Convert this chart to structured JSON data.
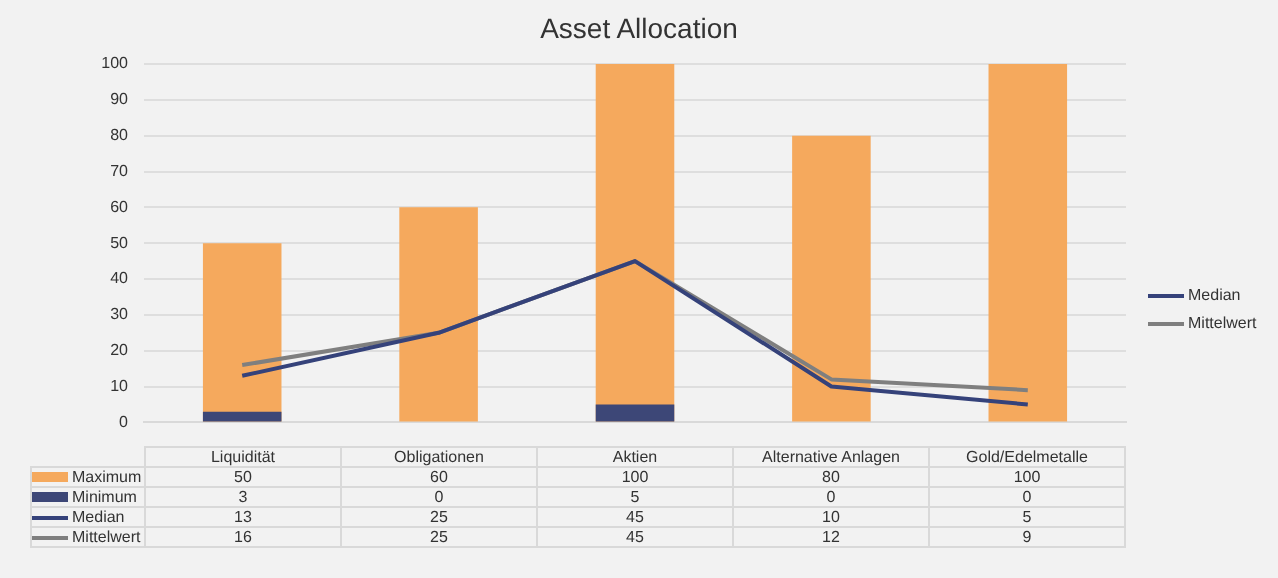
{
  "chart_data": {
    "type": "bar",
    "title": "Asset Allocation",
    "categories": [
      "Liquidität",
      "Obligationen",
      "Aktien",
      "Alternative Anlagen",
      "Gold/Edelmetalle"
    ],
    "series": [
      {
        "name": "Maximum",
        "color": "#f5a95d",
        "values": [
          50,
          60,
          100,
          80,
          100
        ]
      },
      {
        "name": "Minimum",
        "color": "#3d4777",
        "values": [
          3,
          0,
          5,
          0,
          0
        ]
      },
      {
        "name": "Median",
        "type": "line",
        "color": "#35427a",
        "values": [
          13,
          25,
          45,
          10,
          5
        ]
      },
      {
        "name": "Mittelwert",
        "type": "line",
        "color": "#7f7f7f",
        "values": [
          16,
          25,
          45,
          12,
          9
        ]
      }
    ],
    "ylim": [
      0,
      100
    ],
    "yticks": [
      0,
      10,
      20,
      30,
      40,
      50,
      60,
      70,
      80,
      90,
      100
    ],
    "grid": "y",
    "legend": "right",
    "marker": "none",
    "data_labels": true
  }
}
